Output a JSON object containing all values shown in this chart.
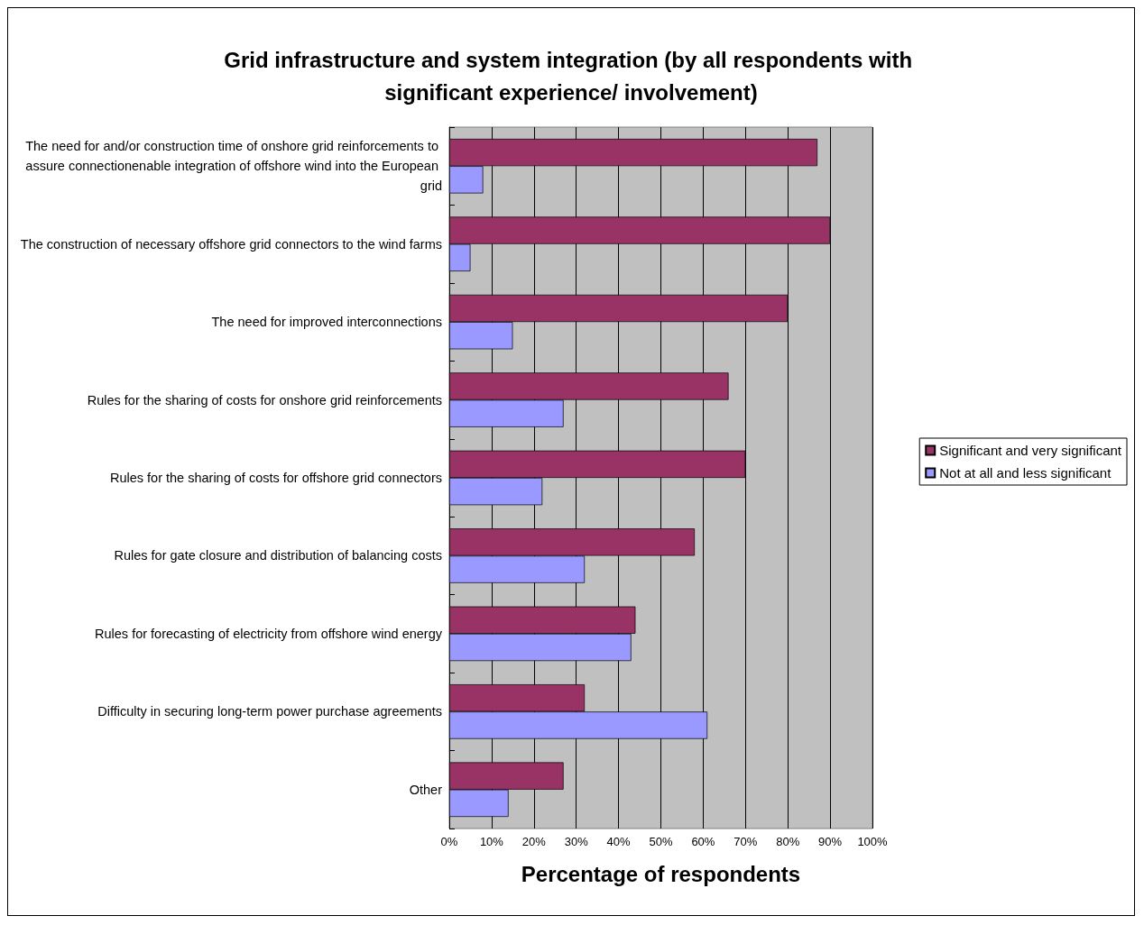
{
  "chart_data": {
    "type": "bar",
    "orientation": "horizontal",
    "title": "Grid infrastructure and system integration (by all respondents with significant experience/ involvement)",
    "xlabel": "Percentage of respondents",
    "categories": [
      "The need for and/or construction time of onshore grid reinforcements to assure connectionenable integration of offshore wind into the European grid",
      "The construction of necessary offshore grid connectors to the wind farms",
      "The need for improved interconnections",
      "Rules for the sharing of costs for onshore grid reinforcements",
      "Rules for the sharing of costs for offshore grid connectors",
      "Rules for gate closure and distribution of balancing costs",
      "Rules for forecasting of electricity from offshore wind energy",
      "Difficulty in securing long-term power purchase agreements",
      "Other"
    ],
    "series": [
      {
        "name": "Significant and very significant",
        "color": "#993366",
        "values": [
          87,
          90,
          80,
          66,
          70,
          58,
          44,
          32,
          27
        ]
      },
      {
        "name": "Not at all and less significant",
        "color": "#9999ff",
        "values": [
          8,
          5,
          15,
          27,
          22,
          32,
          43,
          61,
          14
        ]
      }
    ],
    "xlim": [
      0,
      100
    ],
    "xticks": [
      {
        "value": 0,
        "label": "0%"
      },
      {
        "value": 10,
        "label": "10%"
      },
      {
        "value": 20,
        "label": "20%"
      },
      {
        "value": 30,
        "label": "30%"
      },
      {
        "value": 40,
        "label": "40%"
      },
      {
        "value": 50,
        "label": "50%"
      },
      {
        "value": 60,
        "label": "60%"
      },
      {
        "value": 70,
        "label": "70%"
      },
      {
        "value": 80,
        "label": "80%"
      },
      {
        "value": 90,
        "label": "90%"
      },
      {
        "value": 100,
        "label": "100%"
      }
    ],
    "grid": "x",
    "legend": "right"
  }
}
